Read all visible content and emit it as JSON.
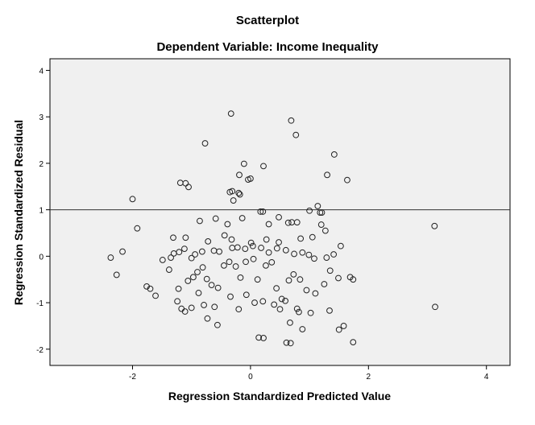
{
  "chart_data": {
    "type": "scatter",
    "title": "Scatterplot",
    "subtitle": "Dependent Variable: Income Inequality",
    "xlabel": "Regression Standardized Predicted Value",
    "ylabel": "Regression Standardized Residual",
    "xlim": [
      -3.4,
      4.4
    ],
    "ylim": [
      -2.35,
      4.25
    ],
    "xticks": [
      -2,
      0,
      2,
      4
    ],
    "yticks": [
      -2,
      -1,
      0,
      1,
      2,
      3,
      4
    ],
    "reference_line_y": 1,
    "grid": false,
    "plot_background": "#f0f0f0",
    "marker": "hollow-circle",
    "points": [
      [
        -0.33,
        3.07
      ],
      [
        0.69,
        2.92
      ],
      [
        0.77,
        2.61
      ],
      [
        -0.77,
        2.43
      ],
      [
        1.42,
        2.19
      ],
      [
        -0.11,
        1.99
      ],
      [
        0.22,
        1.94
      ],
      [
        1.3,
        1.75
      ],
      [
        -0.19,
        1.75
      ],
      [
        0.0,
        1.67
      ],
      [
        -1.19,
        1.58
      ],
      [
        -1.1,
        1.57
      ],
      [
        1.64,
        1.64
      ],
      [
        -1.05,
        1.49
      ],
      [
        -0.04,
        1.65
      ],
      [
        -0.35,
        1.38
      ],
      [
        -0.31,
        1.4
      ],
      [
        -0.2,
        1.36
      ],
      [
        -0.18,
        1.33
      ],
      [
        -2.0,
        1.23
      ],
      [
        -0.29,
        1.2
      ],
      [
        1.14,
        1.08
      ],
      [
        0.17,
        0.96
      ],
      [
        0.21,
        0.96
      ],
      [
        1.0,
        0.98
      ],
      [
        1.21,
        0.94
      ],
      [
        1.18,
        0.94
      ],
      [
        -1.92,
        0.6
      ],
      [
        0.48,
        0.84
      ],
      [
        -0.59,
        0.81
      ],
      [
        -0.14,
        0.82
      ],
      [
        -0.86,
        0.76
      ],
      [
        -0.39,
        0.69
      ],
      [
        0.31,
        0.69
      ],
      [
        0.64,
        0.72
      ],
      [
        0.7,
        0.73
      ],
      [
        0.79,
        0.73
      ],
      [
        1.2,
        0.68
      ],
      [
        -2.17,
        0.1
      ],
      [
        -2.37,
        -0.03
      ],
      [
        -2.27,
        -0.4
      ],
      [
        -1.31,
        0.4
      ],
      [
        -1.1,
        0.4
      ],
      [
        -0.72,
        0.32
      ],
      [
        -0.32,
        0.36
      ],
      [
        0.48,
        0.3
      ],
      [
        0.01,
        0.29
      ],
      [
        0.27,
        0.36
      ],
      [
        0.85,
        0.38
      ],
      [
        1.05,
        0.41
      ],
      [
        1.27,
        0.55
      ],
      [
        -1.49,
        -0.08
      ],
      [
        -1.21,
        0.09
      ],
      [
        -1.3,
        0.06
      ],
      [
        -1.12,
        0.16
      ],
      [
        -1.0,
        -0.04
      ],
      [
        -0.94,
        0.04
      ],
      [
        -0.82,
        0.1
      ],
      [
        -0.62,
        0.12
      ],
      [
        -0.53,
        0.1
      ],
      [
        -0.44,
        0.45
      ],
      [
        -0.31,
        0.18
      ],
      [
        -0.22,
        0.19
      ],
      [
        -0.09,
        0.16
      ],
      [
        0.04,
        0.22
      ],
      [
        0.18,
        0.18
      ],
      [
        0.31,
        0.08
      ],
      [
        0.45,
        0.17
      ],
      [
        0.6,
        0.13
      ],
      [
        0.74,
        0.05
      ],
      [
        0.88,
        0.08
      ],
      [
        0.99,
        0.03
      ],
      [
        1.08,
        -0.05
      ],
      [
        1.29,
        -0.03
      ],
      [
        1.41,
        0.04
      ],
      [
        1.53,
        0.22
      ],
      [
        3.12,
        0.65
      ],
      [
        -1.76,
        -0.65
      ],
      [
        -1.7,
        -0.7
      ],
      [
        -1.61,
        -0.85
      ],
      [
        -1.38,
        -0.29
      ],
      [
        -1.35,
        -0.03
      ],
      [
        -1.22,
        -0.7
      ],
      [
        -1.06,
        -0.53
      ],
      [
        -0.97,
        -0.45
      ],
      [
        -0.9,
        -0.34
      ],
      [
        -0.81,
        -0.24
      ],
      [
        -0.74,
        -0.49
      ],
      [
        -0.66,
        -0.62
      ],
      [
        -0.55,
        -0.68
      ],
      [
        -0.45,
        -0.2
      ],
      [
        -0.36,
        -0.12
      ],
      [
        -0.25,
        -0.22
      ],
      [
        -0.17,
        -0.46
      ],
      [
        -0.08,
        -0.12
      ],
      [
        0.05,
        -0.06
      ],
      [
        0.12,
        -0.5
      ],
      [
        0.26,
        -0.2
      ],
      [
        0.36,
        -0.13
      ],
      [
        0.44,
        -0.69
      ],
      [
        0.53,
        -0.92
      ],
      [
        0.65,
        -0.52
      ],
      [
        0.73,
        -0.39
      ],
      [
        0.84,
        -0.5
      ],
      [
        0.95,
        -0.73
      ],
      [
        1.1,
        -0.8
      ],
      [
        1.25,
        -0.6
      ],
      [
        1.35,
        -0.31
      ],
      [
        1.49,
        -0.47
      ],
      [
        1.69,
        -0.45
      ],
      [
        1.74,
        -0.5
      ],
      [
        -1.24,
        -0.97
      ],
      [
        -1.17,
        -1.13
      ],
      [
        -1.11,
        -1.19
      ],
      [
        -1.0,
        -1.11
      ],
      [
        -0.88,
        -0.79
      ],
      [
        -0.79,
        -1.05
      ],
      [
        -0.73,
        -1.34
      ],
      [
        -0.61,
        -1.09
      ],
      [
        -0.56,
        -1.48
      ],
      [
        -0.34,
        -0.87
      ],
      [
        -0.2,
        -1.14
      ],
      [
        -0.07,
        -0.83
      ],
      [
        0.07,
        -1.0
      ],
      [
        0.21,
        -0.97
      ],
      [
        0.4,
        -1.04
      ],
      [
        0.5,
        -1.14
      ],
      [
        0.59,
        -0.96
      ],
      [
        0.79,
        -1.13
      ],
      [
        0.82,
        -1.2
      ],
      [
        1.02,
        -1.22
      ],
      [
        1.34,
        -1.17
      ],
      [
        3.13,
        -1.09
      ],
      [
        0.14,
        -1.75
      ],
      [
        0.22,
        -1.76
      ],
      [
        0.61,
        -1.86
      ],
      [
        0.68,
        -1.87
      ],
      [
        0.67,
        -1.43
      ],
      [
        0.88,
        -1.57
      ],
      [
        1.5,
        -1.58
      ],
      [
        1.58,
        -1.5
      ],
      [
        1.74,
        -1.85
      ]
    ]
  }
}
